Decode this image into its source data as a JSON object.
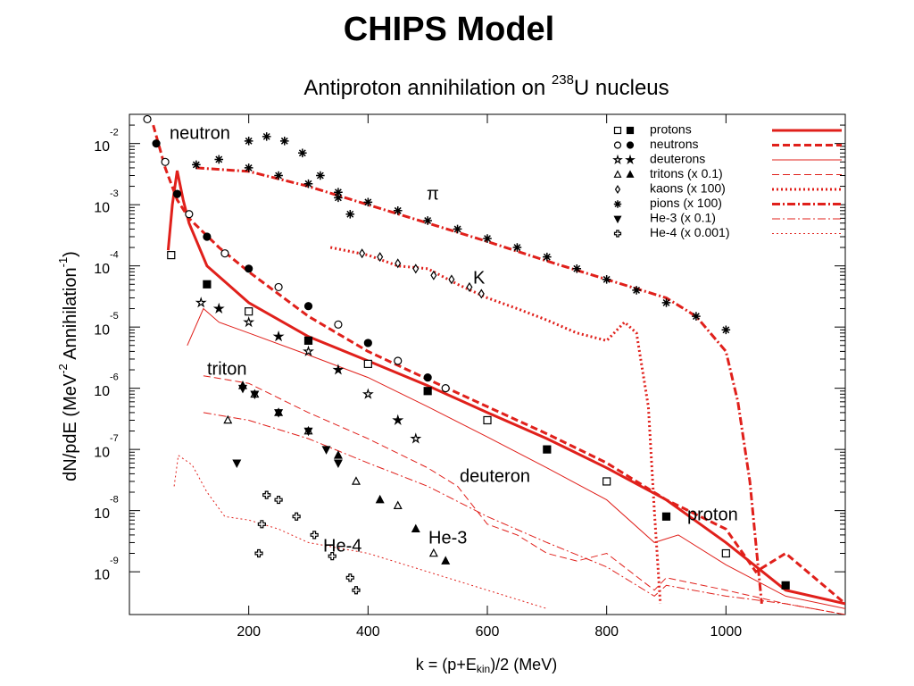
{
  "chart_data": {
    "type": "scatter",
    "title": "CHIPS Model",
    "subtitle": [
      "Antiproton annihilation on ",
      "238",
      "U nucleus"
    ],
    "x_label": [
      "k = (p+E",
      "kin",
      ")/2 (MeV)"
    ],
    "y_label": [
      "dN/pdE (MeV",
      "-2",
      " Annihilation",
      "-1",
      ")"
    ],
    "log_y": true,
    "xlim": [
      0,
      1200
    ],
    "ylim": [
      2e-10,
      0.03
    ],
    "xticks": [
      200,
      400,
      600,
      800,
      1000
    ],
    "yticks": [
      {
        "value": 0.01,
        "label": "10",
        "exponent": "-2"
      },
      {
        "value": 0.001,
        "label": "10",
        "exponent": "-3"
      },
      {
        "value": 0.0001,
        "label": "10",
        "exponent": "-4"
      },
      {
        "value": 1e-05,
        "label": "10",
        "exponent": "-5"
      },
      {
        "value": 1e-06,
        "label": "10",
        "exponent": "-6"
      },
      {
        "value": 1e-07,
        "label": "10",
        "exponent": "-7"
      },
      {
        "value": 1e-08,
        "label": "10",
        "exponent": "-8"
      },
      {
        "value": 1e-09,
        "label": "10",
        "exponent": "-9"
      }
    ],
    "legend": "upper right",
    "series": [
      {
        "name": "protons",
        "marker": "square",
        "fills": [
          "open",
          "filled"
        ],
        "color": "#000",
        "model_color": "#e0201b",
        "dash": "solid",
        "line_width": 3,
        "x": [
          70,
          130,
          200,
          300,
          400,
          500,
          600,
          700,
          800,
          900,
          1000,
          1100
        ],
        "values": [
          0.00015,
          5e-05,
          1.8e-05,
          6e-06,
          2.5e-06,
          9e-07,
          3e-07,
          1e-07,
          3e-08,
          8e-09,
          2e-09,
          6e-10
        ],
        "model_x": [
          65,
          72,
          80,
          90,
          100,
          130,
          200,
          300,
          400,
          500,
          600,
          700,
          800,
          900,
          1000,
          1100,
          1200
        ],
        "model_values": [
          0.00018,
          0.001,
          0.0036,
          0.0012,
          0.0005,
          0.0001,
          2.5e-05,
          7e-06,
          2.8e-06,
          1.1e-06,
          4e-07,
          1.5e-07,
          5e-08,
          1.5e-08,
          3e-09,
          5e-10,
          3e-10
        ]
      },
      {
        "name": "neutrons",
        "marker": "circle",
        "fills": [
          "open",
          "filled"
        ],
        "color": "#000",
        "model_color": "#e0201b",
        "dash": "dashed",
        "line_width": 3,
        "x": [
          30,
          45,
          60,
          80,
          100,
          130,
          160,
          200,
          250,
          300,
          350,
          400,
          450,
          500,
          530
        ],
        "values": [
          0.025,
          0.01,
          0.005,
          0.0015,
          0.0007,
          0.0003,
          0.00016,
          9e-05,
          4.5e-05,
          2.2e-05,
          1.1e-05,
          5.5e-06,
          2.8e-06,
          1.5e-06,
          1e-06
        ],
        "model_x": [
          40,
          60,
          80,
          100,
          150,
          200,
          300,
          400,
          500,
          600,
          700,
          800,
          900,
          1000,
          1050,
          1100,
          1200
        ],
        "model_values": [
          0.02,
          0.004,
          0.0012,
          0.0006,
          0.0002,
          8e-05,
          1.5e-05,
          4e-06,
          1.4e-06,
          5e-07,
          1.8e-07,
          6e-08,
          1.5e-08,
          5e-09,
          1e-09,
          2e-09,
          3e-10
        ]
      },
      {
        "name": "deuterons",
        "marker": "star",
        "fills": [
          "open",
          "filled"
        ],
        "color": "#000",
        "model_color": "#e0201b",
        "dash": "solid",
        "line_width": 1,
        "x": [
          120,
          150,
          200,
          250,
          300,
          350,
          400,
          450,
          480
        ],
        "values": [
          2.5e-05,
          2e-05,
          1.2e-05,
          7e-06,
          4e-06,
          2e-06,
          8e-07,
          3e-07,
          1.5e-07
        ],
        "model_x": [
          97,
          124,
          150,
          200,
          300,
          400,
          500,
          600,
          700,
          800,
          880,
          920,
          1000,
          1100,
          1200
        ],
        "model_values": [
          5e-06,
          2e-05,
          1.2e-05,
          8e-06,
          3.5e-06,
          1.5e-06,
          5e-07,
          1.6e-07,
          5e-08,
          1.5e-08,
          3e-09,
          4e-09,
          1.3e-09,
          4e-10,
          2.5e-10
        ]
      },
      {
        "name": "tritons (x 0.1)",
        "marker": "triangle",
        "fills": [
          "open",
          "filled"
        ],
        "color": "#000",
        "model_color": "#e0201b",
        "dash": "dashed",
        "line_width": 1,
        "x": [
          165,
          190,
          210,
          250,
          300,
          350,
          380,
          420,
          450,
          480,
          510,
          530
        ],
        "values": [
          3e-07,
          1.1e-06,
          8e-07,
          4e-07,
          2e-07,
          8e-08,
          3e-08,
          1.5e-08,
          1.2e-08,
          5e-09,
          2e-09,
          1.5e-09
        ],
        "model_x": [
          124,
          200,
          300,
          400,
          500,
          550,
          600,
          650,
          700,
          750,
          800,
          880,
          900,
          1000,
          1100,
          1200
        ],
        "model_values": [
          1.6e-06,
          1.2e-06,
          4e-07,
          1.5e-07,
          5e-08,
          2.5e-08,
          6e-09,
          4e-09,
          2e-09,
          1.5e-09,
          2e-09,
          5e-10,
          8e-10,
          5e-10,
          3e-10,
          2e-10
        ]
      },
      {
        "name": "kaons (x 100)",
        "marker": "diamond",
        "fills": [
          "open"
        ],
        "color": "#000",
        "model_color": "#e0201b",
        "dash": "dotted",
        "line_width": 3,
        "x": [
          390,
          420,
          450,
          480,
          510,
          540,
          570,
          590
        ],
        "values": [
          0.00016,
          0.00014,
          0.00011,
          9e-05,
          7e-05,
          6e-05,
          4.5e-05,
          3.5e-05
        ],
        "model_x": [
          337,
          400,
          450,
          500,
          550,
          600,
          650,
          700,
          750,
          800,
          830,
          850,
          870,
          880,
          890
        ],
        "model_values": [
          0.0002,
          0.00015,
          0.0001,
          9e-05,
          5e-05,
          3e-05,
          2e-05,
          1.3e-05,
          8e-06,
          6e-06,
          1.2e-05,
          8e-06,
          5e-07,
          1e-08,
          3e-10
        ]
      },
      {
        "name": "pions (x 100)",
        "marker": "asterisk",
        "fills": [
          "open"
        ],
        "color": "#000",
        "model_color": "#e0201b",
        "dash": "dashdot",
        "line_width": 3,
        "x": [
          112,
          150,
          200,
          250,
          300,
          350,
          400,
          450,
          500,
          550,
          600,
          650,
          700,
          750,
          800,
          850,
          900,
          950,
          1000,
          200,
          230,
          260,
          290,
          320,
          350,
          370
        ],
        "values": [
          0.0045,
          0.0055,
          0.004,
          0.003,
          0.0022,
          0.0016,
          0.0011,
          0.0008,
          0.00055,
          0.0004,
          0.00028,
          0.0002,
          0.00014,
          9e-05,
          6e-05,
          4e-05,
          2.5e-05,
          1.5e-05,
          9e-06,
          0.011,
          0.013,
          0.011,
          0.007,
          0.003,
          0.0013,
          0.0007
        ],
        "model_x": [
          112,
          200,
          300,
          400,
          500,
          600,
          700,
          800,
          900,
          950,
          1000,
          1020,
          1040,
          1060
        ],
        "model_values": [
          0.004,
          0.0035,
          0.002,
          0.001,
          0.0005,
          0.00025,
          0.00012,
          6e-05,
          3e-05,
          1.5e-05,
          4e-06,
          6e-07,
          3e-08,
          3e-10
        ]
      },
      {
        "name": "He-3 (x 0.1)",
        "marker": "triangle-down",
        "fills": [
          "filled"
        ],
        "color": "#000",
        "model_color": "#e0201b",
        "dash": "dashdot",
        "line_width": 1,
        "x": [
          180,
          190,
          210,
          250,
          300,
          330,
          350
        ],
        "values": [
          6e-08,
          1e-06,
          8e-07,
          4e-07,
          2e-07,
          1e-07,
          6e-08
        ],
        "model_x": [
          124,
          200,
          300,
          400,
          500,
          600,
          700,
          800,
          880,
          900,
          1000,
          1100,
          1200
        ],
        "model_values": [
          4e-07,
          3e-07,
          1.5e-07,
          6e-08,
          2.5e-08,
          8e-09,
          3e-09,
          1.2e-09,
          4e-10,
          6e-10,
          4e-10,
          3e-10,
          2e-10
        ]
      },
      {
        "name": "He-4 (x 0.001)",
        "marker": "cross",
        "fills": [
          "open"
        ],
        "color": "#000",
        "model_color": "#e0201b",
        "dash": "dotted",
        "line_width": 1,
        "x": [
          217,
          222,
          230,
          250,
          280,
          310,
          340,
          370,
          380
        ],
        "values": [
          2e-09,
          6e-09,
          1.8e-08,
          1.5e-08,
          8e-09,
          4e-09,
          1.8e-09,
          8e-10,
          5e-10
        ],
        "model_x": [
          75,
          82,
          105,
          130,
          160,
          200,
          250,
          300,
          400,
          500,
          600,
          700
        ],
        "model_values": [
          2.5e-08,
          8e-08,
          5.6e-08,
          2e-08,
          8e-09,
          7e-09,
          5e-09,
          3e-09,
          2e-09,
          1e-09,
          5e-10,
          2.5e-10
        ]
      }
    ],
    "annotations": [
      "neutron",
      "π",
      "K",
      "triton",
      "deuteron",
      "proton",
      "He-3",
      "He-4"
    ]
  }
}
